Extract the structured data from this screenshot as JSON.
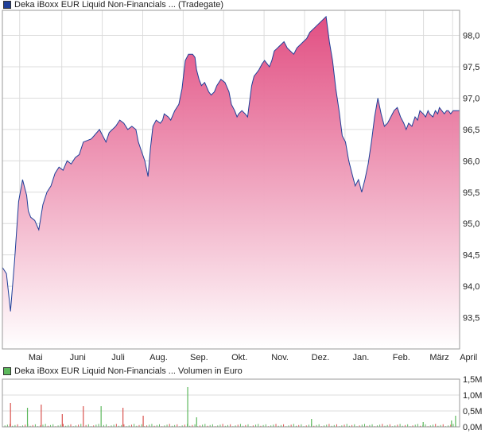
{
  "price_chart": {
    "legend": "Deka iBoxx EUR Liquid Non-Financials ... (Tradegate)",
    "legend_color": "#1f3f99"
  },
  "volume_chart": {
    "legend": "Deka iBoxx EUR Liquid Non-Financials ... Volumen in Euro",
    "legend_color": "#5cb85c"
  },
  "colors": {
    "line": "#1f3f99",
    "area_top": "#e0467c",
    "area_bottom": "#ffffff",
    "grid": "#dcdcdc",
    "vol_up": "#5cb85c",
    "vol_down": "#d9534f"
  },
  "chart_data": [
    {
      "type": "area",
      "series": [
        {
          "x": [
            0,
            5,
            10,
            15,
            20,
            25,
            30,
            32,
            35,
            40,
            45,
            50,
            55,
            60,
            65,
            70,
            75,
            80,
            85,
            90,
            95,
            100,
            110,
            120,
            128,
            132,
            140,
            145,
            150,
            155,
            160,
            165,
            168,
            172,
            176,
            180,
            183,
            186,
            190,
            195,
            198,
            200,
            205,
            208,
            213,
            218,
            222,
            226,
            230,
            235,
            238,
            240,
            243,
            246,
            250,
            255,
            258,
            262,
            265,
            270,
            275,
            280,
            283,
            287,
            290,
            292,
            296,
            300,
            303,
            305,
            308,
            311,
            314,
            317,
            321,
            324,
            327,
            330,
            333,
            336,
            340,
            344,
            348,
            352,
            356,
            360,
            364,
            368,
            372,
            376,
            380,
            384,
            388,
            392,
            396,
            400,
            404,
            408,
            412,
            416,
            420,
            424,
            428,
            432,
            436,
            440,
            444,
            448,
            452,
            456,
            460,
            464,
            468,
            472,
            476,
            480,
            484,
            488,
            492,
            496,
            499,
            502,
            506,
            510,
            513,
            516,
            520,
            523,
            526,
            528,
            532,
            535,
            538,
            540,
            543,
            546,
            549,
            551,
            554,
            557,
            560,
            563,
            565
          ],
          "values": [
            94.3,
            94.2,
            93.6,
            94.4,
            95.35,
            95.7,
            95.45,
            95.2,
            95.1,
            95.05,
            94.9,
            95.3,
            95.5,
            95.6,
            95.8,
            95.9,
            95.85,
            96.0,
            95.95,
            96.05,
            96.1,
            96.3,
            96.35,
            96.5,
            96.3,
            96.45,
            96.55,
            96.65,
            96.6,
            96.5,
            96.55,
            96.5,
            96.3,
            96.15,
            96.0,
            95.75,
            96.2,
            96.55,
            96.65,
            96.6,
            96.65,
            96.75,
            96.7,
            96.65,
            96.8,
            96.9,
            97.15,
            97.6,
            97.7,
            97.7,
            97.65,
            97.45,
            97.3,
            97.2,
            97.25,
            97.1,
            97.05,
            97.1,
            97.2,
            97.3,
            97.25,
            97.1,
            96.9,
            96.8,
            96.7,
            96.75,
            96.8,
            96.75,
            96.7,
            96.9,
            97.2,
            97.35,
            97.4,
            97.45,
            97.55,
            97.6,
            97.55,
            97.5,
            97.6,
            97.75,
            97.8,
            97.85,
            97.9,
            97.8,
            97.75,
            97.7,
            97.8,
            97.85,
            97.9,
            97.95,
            98.05,
            98.1,
            98.15,
            98.2,
            98.25,
            98.3,
            97.9,
            97.6,
            97.15,
            96.8,
            96.4,
            96.3,
            96.0,
            95.8,
            95.6,
            95.7,
            95.5,
            95.7,
            95.95,
            96.3,
            96.7,
            97.0,
            96.75,
            96.55,
            96.6,
            96.7,
            96.8,
            96.85,
            96.7,
            96.6,
            96.5,
            96.6,
            96.55,
            96.7,
            96.65,
            96.8,
            96.75,
            96.7,
            96.8,
            96.75,
            96.7,
            96.8,
            96.75,
            96.85,
            96.8,
            96.75,
            96.8,
            96.8,
            96.75,
            96.8,
            96.8,
            96.8,
            96.8
          ],
          "name": ""
        }
      ],
      "xlabels": [
        "Mai",
        "Juni",
        "Juli",
        "Aug.",
        "Sep.",
        "Okt.",
        "Nov.",
        "Dez.",
        "Jan.",
        "Feb.",
        "März",
        "April"
      ],
      "yticks": [
        "93,5",
        "94,0",
        "94,5",
        "95,0",
        "95,5",
        "96,0",
        "96,5",
        "97,0",
        "97,5",
        "98,0"
      ],
      "ylim": [
        93.0,
        98.4
      ],
      "grid": true
    },
    {
      "type": "bar",
      "yticks": [
        "0,0M",
        "0,5M",
        "1,0M",
        "1,5M"
      ],
      "ylim": [
        0,
        1.5
      ],
      "grid": true,
      "bars": [
        {
          "x": 10,
          "v": 0.75,
          "c": "down"
        },
        {
          "x": 31,
          "v": 0.6,
          "c": "up"
        },
        {
          "x": 48,
          "v": 0.7,
          "c": "down"
        },
        {
          "x": 74,
          "v": 0.4,
          "c": "down"
        },
        {
          "x": 100,
          "v": 0.65,
          "c": "down"
        },
        {
          "x": 122,
          "v": 0.65,
          "c": "up"
        },
        {
          "x": 149,
          "v": 0.6,
          "c": "down"
        },
        {
          "x": 174,
          "v": 0.35,
          "c": "down"
        },
        {
          "x": 229,
          "v": 1.25,
          "c": "up"
        },
        {
          "x": 240,
          "v": 0.3,
          "c": "up"
        },
        {
          "x": 382,
          "v": 0.25,
          "c": "up"
        },
        {
          "x": 520,
          "v": 0.15,
          "c": "up"
        },
        {
          "x": 555,
          "v": 0.2,
          "c": "up"
        },
        {
          "x": 560,
          "v": 0.35,
          "c": "up"
        }
      ]
    }
  ]
}
